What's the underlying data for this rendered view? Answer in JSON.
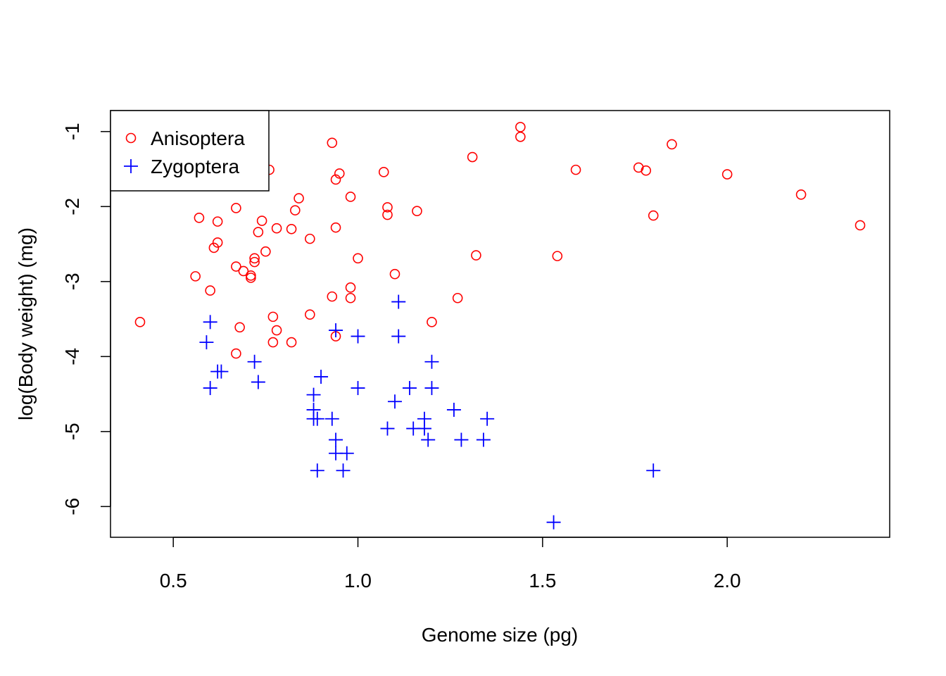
{
  "chart_data": {
    "type": "scatter",
    "xlabel": "Genome size (pg)",
    "ylabel": "log(Body weight) (mg)",
    "xlim": [
      0.33,
      2.44
    ],
    "ylim": [
      -6.41,
      -0.72
    ],
    "xticks": [
      0.5,
      1.0,
      1.5,
      2.0
    ],
    "xtick_labels": [
      "0.5",
      "1.0",
      "1.5",
      "2.0"
    ],
    "yticks": [
      -6,
      -5,
      -4,
      -3,
      -2,
      -1
    ],
    "ytick_labels": [
      "-6",
      "-5",
      "-4",
      "-3",
      "-2",
      "-1"
    ],
    "grid": false,
    "legend_position": "top-left",
    "series": [
      {
        "name": "Anisoptera",
        "marker": "open-circle",
        "color": "#ff0000",
        "points": [
          [
            0.41,
            -3.54
          ],
          [
            0.56,
            -2.93
          ],
          [
            0.57,
            -2.15
          ],
          [
            0.6,
            -3.12
          ],
          [
            0.61,
            -2.55
          ],
          [
            0.62,
            -2.2
          ],
          [
            0.62,
            -2.48
          ],
          [
            0.67,
            -2.02
          ],
          [
            0.67,
            -2.8
          ],
          [
            0.67,
            -3.96
          ],
          [
            0.68,
            -3.61
          ],
          [
            0.69,
            -2.86
          ],
          [
            0.71,
            -2.92
          ],
          [
            0.71,
            -2.95
          ],
          [
            0.72,
            -2.69
          ],
          [
            0.72,
            -2.74
          ],
          [
            0.73,
            -2.34
          ],
          [
            0.74,
            -2.19
          ],
          [
            0.75,
            -2.6
          ],
          [
            0.76,
            -1.51
          ],
          [
            0.77,
            -3.47
          ],
          [
            0.77,
            -3.81
          ],
          [
            0.78,
            -3.65
          ],
          [
            0.78,
            -2.29
          ],
          [
            0.82,
            -2.3
          ],
          [
            0.82,
            -3.81
          ],
          [
            0.83,
            -2.05
          ],
          [
            0.84,
            -1.89
          ],
          [
            0.87,
            -2.43
          ],
          [
            0.87,
            -3.44
          ],
          [
            0.93,
            -1.15
          ],
          [
            0.93,
            -3.2
          ],
          [
            0.94,
            -1.64
          ],
          [
            0.94,
            -2.28
          ],
          [
            0.94,
            -3.73
          ],
          [
            0.95,
            -1.56
          ],
          [
            0.98,
            -1.87
          ],
          [
            0.98,
            -3.08
          ],
          [
            0.98,
            -3.22
          ],
          [
            1.0,
            -2.69
          ],
          [
            1.07,
            -1.54
          ],
          [
            1.08,
            -2.01
          ],
          [
            1.08,
            -2.11
          ],
          [
            1.1,
            -2.9
          ],
          [
            1.16,
            -2.06
          ],
          [
            1.2,
            -3.54
          ],
          [
            1.27,
            -3.22
          ],
          [
            1.31,
            -1.34
          ],
          [
            1.32,
            -2.65
          ],
          [
            1.44,
            -0.94
          ],
          [
            1.44,
            -1.07
          ],
          [
            1.54,
            -2.66
          ],
          [
            1.59,
            -1.51
          ],
          [
            1.76,
            -1.48
          ],
          [
            1.78,
            -1.52
          ],
          [
            1.8,
            -2.12
          ],
          [
            1.85,
            -1.17
          ],
          [
            2.0,
            -1.57
          ],
          [
            2.2,
            -1.84
          ],
          [
            2.36,
            -2.25
          ]
        ]
      },
      {
        "name": "Zygoptera",
        "marker": "plus",
        "color": "#0000ff",
        "points": [
          [
            0.59,
            -3.81
          ],
          [
            0.6,
            -3.54
          ],
          [
            0.6,
            -4.42
          ],
          [
            0.62,
            -4.2
          ],
          [
            0.63,
            -4.2
          ],
          [
            0.72,
            -4.07
          ],
          [
            0.73,
            -4.34
          ],
          [
            0.88,
            -4.51
          ],
          [
            0.88,
            -4.71
          ],
          [
            0.88,
            -4.83
          ],
          [
            0.89,
            -5.52
          ],
          [
            0.89,
            -4.83
          ],
          [
            0.9,
            -4.27
          ],
          [
            0.93,
            -4.83
          ],
          [
            0.94,
            -3.65
          ],
          [
            0.94,
            -5.11
          ],
          [
            0.94,
            -5.29
          ],
          [
            0.96,
            -5.52
          ],
          [
            0.97,
            -5.29
          ],
          [
            1.0,
            -3.73
          ],
          [
            1.0,
            -4.42
          ],
          [
            1.08,
            -4.96
          ],
          [
            1.1,
            -4.6
          ],
          [
            1.11,
            -3.27
          ],
          [
            1.11,
            -3.73
          ],
          [
            1.14,
            -4.42
          ],
          [
            1.15,
            -4.96
          ],
          [
            1.18,
            -4.96
          ],
          [
            1.18,
            -4.83
          ],
          [
            1.19,
            -5.11
          ],
          [
            1.2,
            -4.07
          ],
          [
            1.2,
            -4.42
          ],
          [
            1.26,
            -4.71
          ],
          [
            1.28,
            -5.11
          ],
          [
            1.34,
            -5.11
          ],
          [
            1.35,
            -4.83
          ],
          [
            1.53,
            -6.21
          ],
          [
            1.8,
            -5.52
          ]
        ]
      }
    ]
  }
}
